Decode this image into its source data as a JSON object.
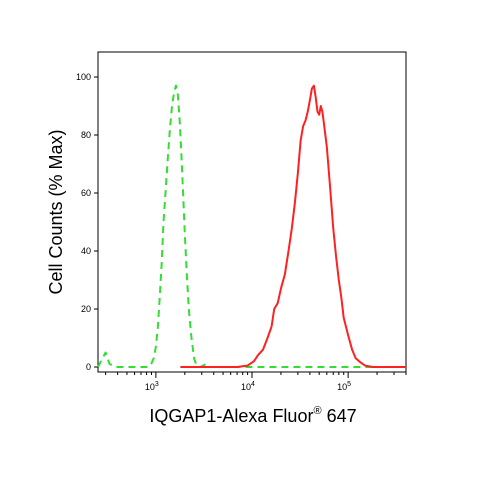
{
  "chart_data": {
    "type": "line",
    "xlabel_main": "IQGAP1-Alexa Fluor",
    "xlabel_sup": "®",
    "xlabel_tail": " 647",
    "ylabel": "Cell Counts (% Max)",
    "x_scale": "log",
    "xlim": [
      250,
      400000
    ],
    "ylim": [
      0,
      100
    ],
    "y_ticks": [
      0,
      20,
      40,
      60,
      80,
      100
    ],
    "y_tick_labels": [
      "0",
      "20",
      "40",
      "60",
      "80",
      "100"
    ],
    "x_ticks": [
      {
        "value": 1000,
        "base": "10",
        "exp": "3"
      },
      {
        "value": 10000,
        "base": "10",
        "exp": "4"
      },
      {
        "value": 100000,
        "base": "10",
        "exp": "5"
      }
    ],
    "series": [
      {
        "color": "#33dd33",
        "dash": true,
        "points": [
          [
            250,
            0
          ],
          [
            300,
            5
          ],
          [
            330,
            1
          ],
          [
            400,
            0
          ],
          [
            600,
            0
          ],
          [
            800,
            0
          ],
          [
            880,
            0.5
          ],
          [
            950,
            3
          ],
          [
            1000,
            7
          ],
          [
            1050,
            14
          ],
          [
            1100,
            25
          ],
          [
            1150,
            36
          ],
          [
            1200,
            50
          ],
          [
            1260,
            60
          ],
          [
            1330,
            72
          ],
          [
            1400,
            82
          ],
          [
            1470,
            90
          ],
          [
            1550,
            95
          ],
          [
            1620,
            97
          ],
          [
            1690,
            94
          ],
          [
            1760,
            86
          ],
          [
            1840,
            74
          ],
          [
            1920,
            60
          ],
          [
            2000,
            46
          ],
          [
            2100,
            32
          ],
          [
            2200,
            20
          ],
          [
            2350,
            10
          ],
          [
            2500,
            3
          ],
          [
            2650,
            0.5
          ],
          [
            2900,
            0
          ],
          [
            3300,
            1
          ],
          [
            3600,
            0
          ],
          [
            5000,
            0
          ],
          [
            20000,
            0
          ],
          [
            60000,
            0
          ],
          [
            150000,
            0
          ],
          [
            400000,
            0
          ]
        ]
      },
      {
        "color": "#ff2020",
        "dash": false,
        "points": [
          [
            1800,
            0
          ],
          [
            4000,
            0
          ],
          [
            7000,
            0
          ],
          [
            9000,
            0.5
          ],
          [
            10500,
            2
          ],
          [
            11500,
            4
          ],
          [
            13000,
            6
          ],
          [
            14500,
            10
          ],
          [
            16000,
            14
          ],
          [
            17000,
            20
          ],
          [
            18500,
            22
          ],
          [
            20000,
            27
          ],
          [
            22000,
            32
          ],
          [
            24000,
            40
          ],
          [
            26000,
            48
          ],
          [
            28000,
            57
          ],
          [
            30000,
            67
          ],
          [
            32000,
            78
          ],
          [
            34000,
            83
          ],
          [
            36000,
            85
          ],
          [
            38000,
            88
          ],
          [
            40000,
            92
          ],
          [
            42000,
            96
          ],
          [
            44000,
            97
          ],
          [
            46000,
            93
          ],
          [
            48000,
            88
          ],
          [
            50000,
            87
          ],
          [
            52000,
            90
          ],
          [
            54000,
            88
          ],
          [
            56000,
            84
          ],
          [
            60000,
            76
          ],
          [
            65000,
            62
          ],
          [
            70000,
            48
          ],
          [
            75000,
            38
          ],
          [
            80000,
            30
          ],
          [
            85000,
            24
          ],
          [
            90000,
            17
          ],
          [
            100000,
            11
          ],
          [
            110000,
            6
          ],
          [
            120000,
            3
          ],
          [
            135000,
            1.5
          ],
          [
            150000,
            0.5
          ],
          [
            180000,
            0
          ],
          [
            250000,
            0
          ],
          [
            400000,
            0
          ]
        ]
      }
    ]
  }
}
